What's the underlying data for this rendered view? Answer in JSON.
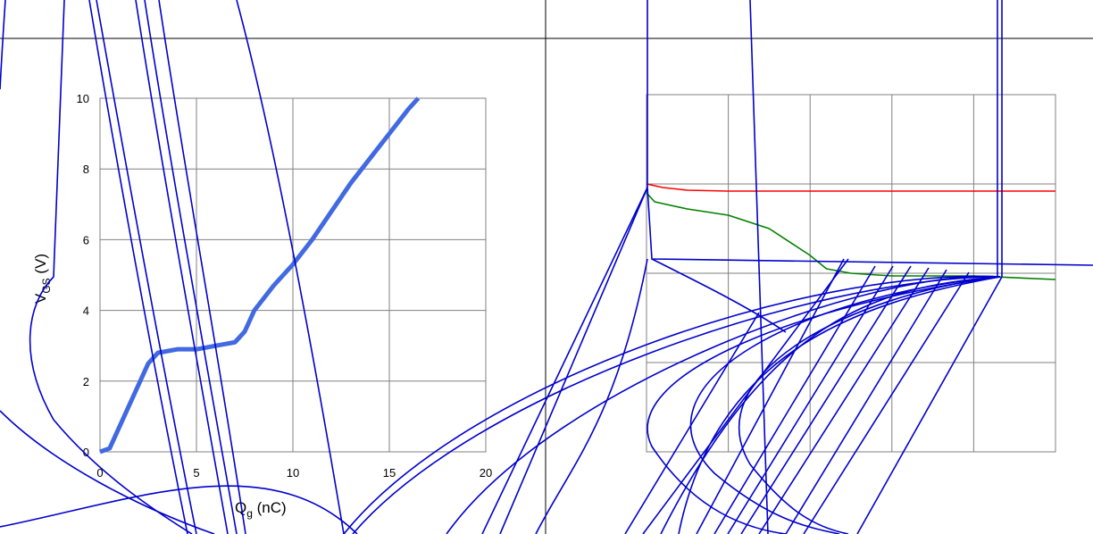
{
  "chart_data": [
    {
      "type": "line",
      "xlabel": "Q",
      "xlabel_sub": "g",
      "xlabel_unit": " (nC)",
      "ylabel": "V",
      "ylabel_sub": "GS",
      "ylabel_unit": " (V)",
      "xlim": [
        0,
        20
      ],
      "ylim": [
        0,
        10
      ],
      "x_ticks": [
        "0",
        "5",
        "10",
        "15",
        "20"
      ],
      "y_ticks": [
        "0",
        "2",
        "4",
        "6",
        "8",
        "10"
      ],
      "grid": true,
      "series": [
        {
          "color": "#4169e1",
          "x": [
            0,
            0.5,
            1.0,
            1.5,
            2.0,
            2.5,
            3.0,
            4.0,
            5.0,
            6.0,
            7.0,
            7.5,
            8.0,
            9.0,
            10.0,
            11.0,
            12.0,
            13.0,
            14.0,
            15.0,
            16.0,
            16.5
          ],
          "y": [
            0,
            0.1,
            0.7,
            1.3,
            1.9,
            2.5,
            2.8,
            2.9,
            2.9,
            3.0,
            3.1,
            3.4,
            4.0,
            4.7,
            5.3,
            6.0,
            6.8,
            7.6,
            8.3,
            9.0,
            9.7,
            10.0
          ]
        }
      ]
    },
    {
      "type": "line",
      "grid": true,
      "xlim": [
        0,
        5
      ],
      "ylim": [
        0,
        4
      ],
      "series": [
        {
          "color": "#ff0000",
          "x": [
            0,
            0.2,
            0.5,
            1.0,
            2.0,
            3.0,
            4.0,
            5.0
          ],
          "y": [
            3.0,
            2.96,
            2.93,
            2.92,
            2.92,
            2.92,
            2.92,
            2.92
          ]
        },
        {
          "color": "#008000",
          "x": [
            0,
            0.1,
            0.5,
            1.0,
            1.5,
            2.0,
            2.2,
            2.5,
            3.0,
            4.0,
            5.0
          ],
          "y": [
            2.9,
            2.8,
            2.72,
            2.65,
            2.5,
            2.2,
            2.05,
            2.0,
            1.97,
            1.97,
            1.93
          ]
        }
      ]
    }
  ],
  "overlay_color": "#0000cd"
}
